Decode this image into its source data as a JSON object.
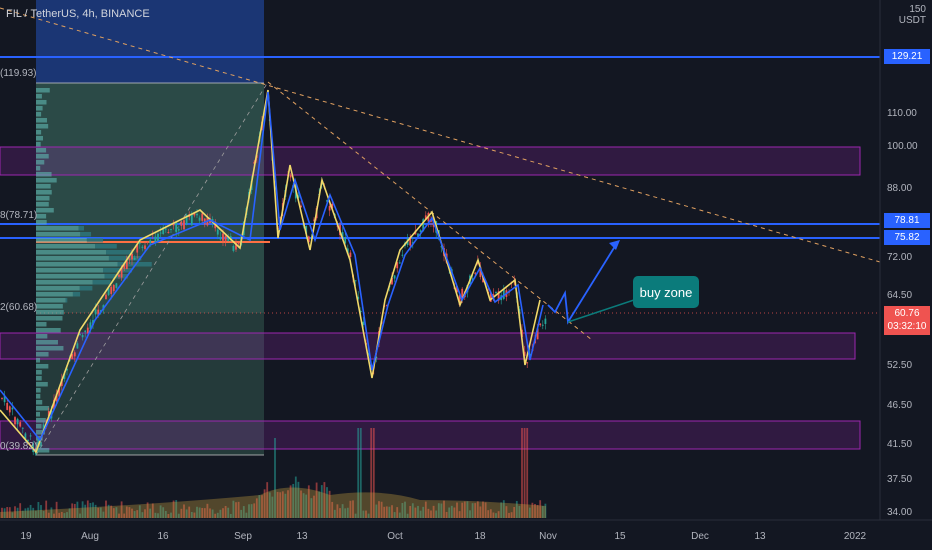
{
  "header": {
    "symbol": "FIL / TetherUS, 4h, BINANCE"
  },
  "price_axis": {
    "currency_line1": "150",
    "currency_line2": "USDT",
    "ticks": [
      "110.00",
      "100.00",
      "88.00",
      "72.00",
      "64.50",
      "52.50",
      "46.50",
      "41.50",
      "37.50",
      "34.00"
    ]
  },
  "time_axis": {
    "ticks": [
      "19",
      "Aug",
      "16",
      "Sep",
      "13",
      "Oct",
      "18",
      "Nov",
      "15",
      "Dec",
      "13",
      "2022"
    ]
  },
  "price_tags": {
    "top": "129.21",
    "upper_blue_1": "78.81",
    "upper_blue_2": "75.82",
    "last_price": "60.76",
    "countdown": "03:32:10"
  },
  "range_labels": {
    "high": "(119.93)",
    "fib_mid": "8(78.71)",
    "fib_low": "2(60.68)",
    "low": "0(39.82)"
  },
  "annotation": {
    "label": "buy zone"
  },
  "colors": {
    "background": "#131722",
    "blue_line": "#2962ff",
    "zone_border": "#9c27b0",
    "candle_up": "#26a69a",
    "candle_down": "#ef5350",
    "callout": "#0b7b7b",
    "last_price": "#ef5350"
  }
}
